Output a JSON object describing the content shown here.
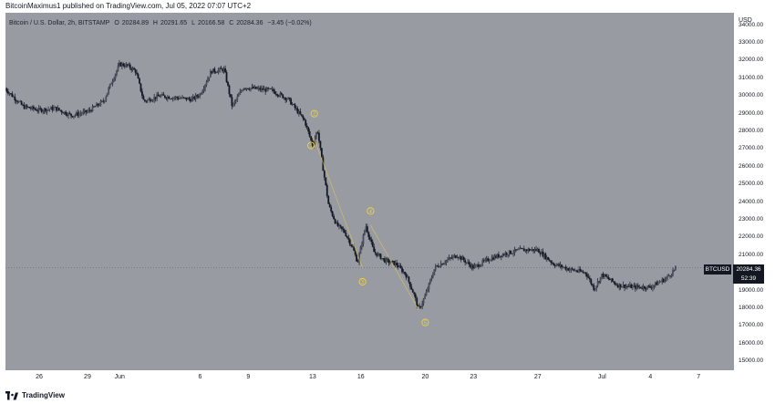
{
  "header": {
    "publish_note": "BitcoinMaximus1 published on TradingView.com, Jul 05, 2022 07:07 UTC+2"
  },
  "legend": {
    "symbol": "Bitcoin / U.S. Dollar, 2h, BITSTAMP",
    "o_key": "O",
    "o_val": "20284.89",
    "h_key": "H",
    "h_val": "20291.65",
    "l_key": "L",
    "l_val": "20166.58",
    "c_key": "C",
    "c_val": "20284.36",
    "change": "−3.45 (−0.02%)"
  },
  "price_tag": {
    "symbol": "BTCUSD",
    "price": "20284.36",
    "countdown": "52:39"
  },
  "brand": {
    "name": "TradingView"
  },
  "colors": {
    "background": "#989ba2",
    "candle": "#131722",
    "wave_label": "#f2d43a",
    "wave_line": "#f2d43a"
  },
  "chart_data": {
    "type": "candlestick",
    "ylabel": "USD",
    "ylim": [
      14500,
      34700
    ],
    "y_ticks": [
      15000,
      16000,
      17000,
      18000,
      19000,
      20000,
      21000,
      22000,
      23000,
      24000,
      25000,
      26000,
      27000,
      28000,
      29000,
      30000,
      31000,
      32000,
      33000,
      34000
    ],
    "y_tick_labels": [
      "15000.00",
      "16000.00",
      "17000.00",
      "18000.00",
      "19000.00",
      "20000.00",
      "21000.00",
      "22000.00",
      "23000.00",
      "24000.00",
      "25000.00",
      "26000.00",
      "27000.00",
      "28000.00",
      "29000.00",
      "30000.00",
      "31000.00",
      "32000.00",
      "33000.00",
      "34000.00"
    ],
    "x_range_days": [
      -7.1,
      38.2
    ],
    "x_ticks": [
      {
        "label": "26",
        "day": -5
      },
      {
        "label": "29",
        "day": -2
      },
      {
        "label": "Jun",
        "day": 0
      },
      {
        "label": "6",
        "day": 5
      },
      {
        "label": "9",
        "day": 8
      },
      {
        "label": "13",
        "day": 12
      },
      {
        "label": "16",
        "day": 15
      },
      {
        "label": "20",
        "day": 19
      },
      {
        "label": "23",
        "day": 22
      },
      {
        "label": "27",
        "day": 26
      },
      {
        "label": "Jul",
        "day": 30
      },
      {
        "label": "4",
        "day": 33
      },
      {
        "label": "7",
        "day": 36
      }
    ],
    "price_path": [
      {
        "day": -7.1,
        "price": 30400
      },
      {
        "day": -6.0,
        "price": 29400
      },
      {
        "day": -5.0,
        "price": 29200
      },
      {
        "day": -4.0,
        "price": 29300
      },
      {
        "day": -3.0,
        "price": 28900
      },
      {
        "day": -2.0,
        "price": 29100
      },
      {
        "day": -1.0,
        "price": 29700
      },
      {
        "day": -0.5,
        "price": 30800
      },
      {
        "day": 0.0,
        "price": 31800
      },
      {
        "day": 0.5,
        "price": 31700
      },
      {
        "day": 1.0,
        "price": 31400
      },
      {
        "day": 1.5,
        "price": 29700
      },
      {
        "day": 2.5,
        "price": 30000
      },
      {
        "day": 3.5,
        "price": 29900
      },
      {
        "day": 4.5,
        "price": 29800
      },
      {
        "day": 5.0,
        "price": 30100
      },
      {
        "day": 5.7,
        "price": 31400
      },
      {
        "day": 6.5,
        "price": 31500
      },
      {
        "day": 7.0,
        "price": 29400
      },
      {
        "day": 7.7,
        "price": 30500
      },
      {
        "day": 8.5,
        "price": 30400
      },
      {
        "day": 9.5,
        "price": 30300
      },
      {
        "day": 10.5,
        "price": 29800
      },
      {
        "day": 11.5,
        "price": 28600
      },
      {
        "day": 12.0,
        "price": 27200
      },
      {
        "day": 12.3,
        "price": 28100
      },
      {
        "day": 12.6,
        "price": 26200
      },
      {
        "day": 13.0,
        "price": 23800
      },
      {
        "day": 13.5,
        "price": 22700
      },
      {
        "day": 14.0,
        "price": 22300
      },
      {
        "day": 14.5,
        "price": 21400
      },
      {
        "day": 14.8,
        "price": 20600
      },
      {
        "day": 15.3,
        "price": 22700
      },
      {
        "day": 15.8,
        "price": 21200
      },
      {
        "day": 16.5,
        "price": 20700
      },
      {
        "day": 17.2,
        "price": 20500
      },
      {
        "day": 17.8,
        "price": 19900
      },
      {
        "day": 18.3,
        "price": 18800
      },
      {
        "day": 18.6,
        "price": 17900
      },
      {
        "day": 19.0,
        "price": 18700
      },
      {
        "day": 19.6,
        "price": 20300
      },
      {
        "day": 20.3,
        "price": 20700
      },
      {
        "day": 21.0,
        "price": 21000
      },
      {
        "day": 22.0,
        "price": 20300
      },
      {
        "day": 23.0,
        "price": 20800
      },
      {
        "day": 24.0,
        "price": 21100
      },
      {
        "day": 25.0,
        "price": 21300
      },
      {
        "day": 26.0,
        "price": 21300
      },
      {
        "day": 27.0,
        "price": 20500
      },
      {
        "day": 28.0,
        "price": 20200
      },
      {
        "day": 29.0,
        "price": 20000
      },
      {
        "day": 29.5,
        "price": 19100
      },
      {
        "day": 30.0,
        "price": 19900
      },
      {
        "day": 31.0,
        "price": 19300
      },
      {
        "day": 32.0,
        "price": 19200
      },
      {
        "day": 33.0,
        "price": 19200
      },
      {
        "day": 34.0,
        "price": 19700
      },
      {
        "day": 34.6,
        "price": 20284
      }
    ],
    "annotations": [
      {
        "label": "1",
        "day": 11.9,
        "price": 27200
      },
      {
        "label": "2",
        "day": 12.1,
        "price": 29000
      },
      {
        "label": "3",
        "day": 15.1,
        "price": 19500
      },
      {
        "label": "4",
        "day": 15.6,
        "price": 23500
      },
      {
        "label": "5",
        "day": 19.0,
        "price": 17200
      }
    ],
    "wave_lines": [
      {
        "from_day": 12.0,
        "from_price": 27800,
        "to_day": 15.1,
        "to_price": 20300
      },
      {
        "from_day": 15.6,
        "from_price": 22700,
        "to_day": 18.6,
        "to_price": 17900
      }
    ]
  }
}
